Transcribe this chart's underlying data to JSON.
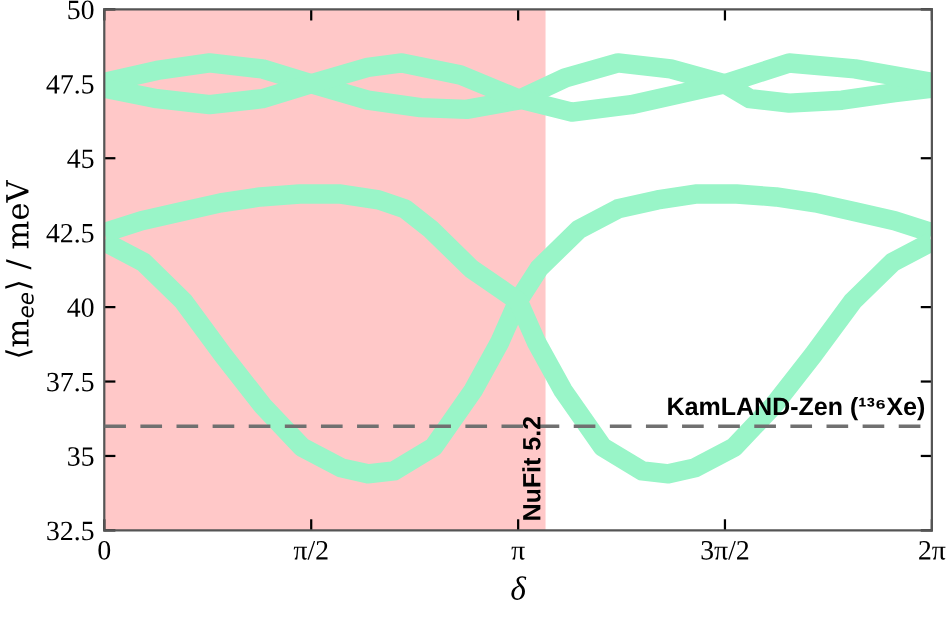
{
  "chart_data": {
    "type": "line",
    "xlabel": "δ",
    "ylabel": "⟨m$_{ee}$⟩ / meV",
    "xlim": [
      0,
      6.283
    ],
    "ylim": [
      32.5,
      50
    ],
    "xticks": [
      0,
      {
        "value": 1.571,
        "label": "π/2"
      },
      {
        "value": 3.142,
        "label": "π"
      },
      {
        "value": 4.712,
        "label": "3π/2"
      },
      {
        "value": 6.283,
        "label": "2π"
      }
    ],
    "yticks": [
      32.5,
      35,
      37.5,
      40,
      42.5,
      45,
      47.5,
      50
    ],
    "grid": false,
    "legend": false,
    "series": [
      {
        "color": "#99f5c8",
        "x": [
          0,
          0.3,
          0.6,
          0.9,
          1.2,
          1.5,
          1.8,
          2.0,
          2.2,
          2.5,
          2.8,
          3.0,
          3.14,
          3.3,
          3.6,
          3.9,
          4.2,
          4.5,
          4.8,
          5.1,
          5.4,
          5.7,
          6.0,
          6.283
        ],
        "values": [
          42.2,
          41.5,
          40.2,
          38.4,
          36.7,
          35.3,
          34.6,
          34.4,
          34.5,
          35.3,
          37.2,
          38.8,
          40.2,
          41.3,
          42.6,
          43.3,
          43.6,
          43.8,
          43.8,
          43.7,
          43.5,
          43.2,
          42.9,
          42.5
        ]
      },
      {
        "color": "#99f5c8",
        "x": [
          0,
          0.283,
          0.583,
          0.883,
          1.183,
          1.483,
          1.783,
          2.083,
          2.283,
          2.483,
          2.783,
          3.143,
          3.283,
          3.483,
          3.783,
          4.083,
          4.283,
          4.483,
          4.783,
          5.083,
          5.383,
          5.683,
          5.983,
          6.283
        ],
        "values": [
          42.5,
          42.9,
          43.2,
          43.5,
          43.7,
          43.8,
          43.8,
          43.6,
          43.3,
          42.6,
          41.3,
          40.2,
          38.8,
          37.2,
          35.3,
          34.5,
          34.4,
          34.6,
          35.3,
          36.7,
          38.4,
          40.2,
          41.5,
          42.2
        ]
      },
      {
        "color": "#99f5c8",
        "x": [
          0,
          0.4,
          0.8,
          1.2,
          1.571,
          2.0,
          2.4,
          2.75,
          3.14,
          3.5,
          3.9,
          4.3,
          4.712,
          4.9,
          5.2,
          5.6,
          6.0,
          6.283
        ],
        "values": [
          47.55,
          47.95,
          48.2,
          48.0,
          47.5,
          46.95,
          46.7,
          46.64,
          46.95,
          47.7,
          48.2,
          48.0,
          47.5,
          47.0,
          46.85,
          46.95,
          47.2,
          47.35
        ]
      },
      {
        "color": "#99f5c8",
        "x": [
          0,
          0.4,
          0.8,
          1.2,
          1.571,
          2.0,
          2.26,
          2.7,
          3.14,
          3.55,
          4.0,
          4.712,
          5.2,
          5.7,
          6.283
        ],
        "values": [
          47.35,
          47.0,
          46.8,
          47.0,
          47.5,
          48.05,
          48.2,
          47.8,
          47.0,
          46.55,
          46.8,
          47.5,
          48.2,
          48.0,
          47.55
        ]
      }
    ],
    "ref_lines": [
      {
        "axis": "y",
        "value": 36,
        "label": "KamLAND-Zen (¹³⁶Xe)",
        "color": "#707070",
        "line_style": "dashed"
      }
    ],
    "bands": [
      {
        "axis": "x",
        "from": 0,
        "to": 3.35,
        "label": "NuFit 5.2",
        "color": "#ffc8c8"
      }
    ]
  }
}
